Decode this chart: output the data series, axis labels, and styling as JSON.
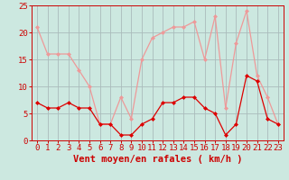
{
  "hours": [
    0,
    1,
    2,
    3,
    4,
    5,
    6,
    7,
    8,
    9,
    10,
    11,
    12,
    13,
    14,
    15,
    16,
    17,
    18,
    19,
    20,
    21,
    22,
    23
  ],
  "wind_avg": [
    7,
    6,
    6,
    7,
    6,
    6,
    3,
    3,
    1,
    1,
    3,
    4,
    7,
    7,
    8,
    8,
    6,
    5,
    1,
    3,
    12,
    11,
    4,
    3
  ],
  "wind_gust": [
    21,
    16,
    16,
    16,
    13,
    10,
    3,
    3,
    8,
    4,
    15,
    19,
    20,
    21,
    21,
    22,
    15,
    23,
    6,
    18,
    24,
    12,
    8,
    3
  ],
  "bg_color": "#cce8e0",
  "grid_color": "#aabbbb",
  "avg_color": "#dd0000",
  "gust_color": "#ee9999",
  "xlabel": "Vent moyen/en rafales ( km/h )",
  "xlabel_color": "#cc0000",
  "xlabel_fontsize": 7.5,
  "tick_color": "#cc0000",
  "tick_fontsize": 6.5,
  "ylim": [
    0,
    25
  ],
  "yticks": [
    0,
    5,
    10,
    15,
    20,
    25
  ]
}
